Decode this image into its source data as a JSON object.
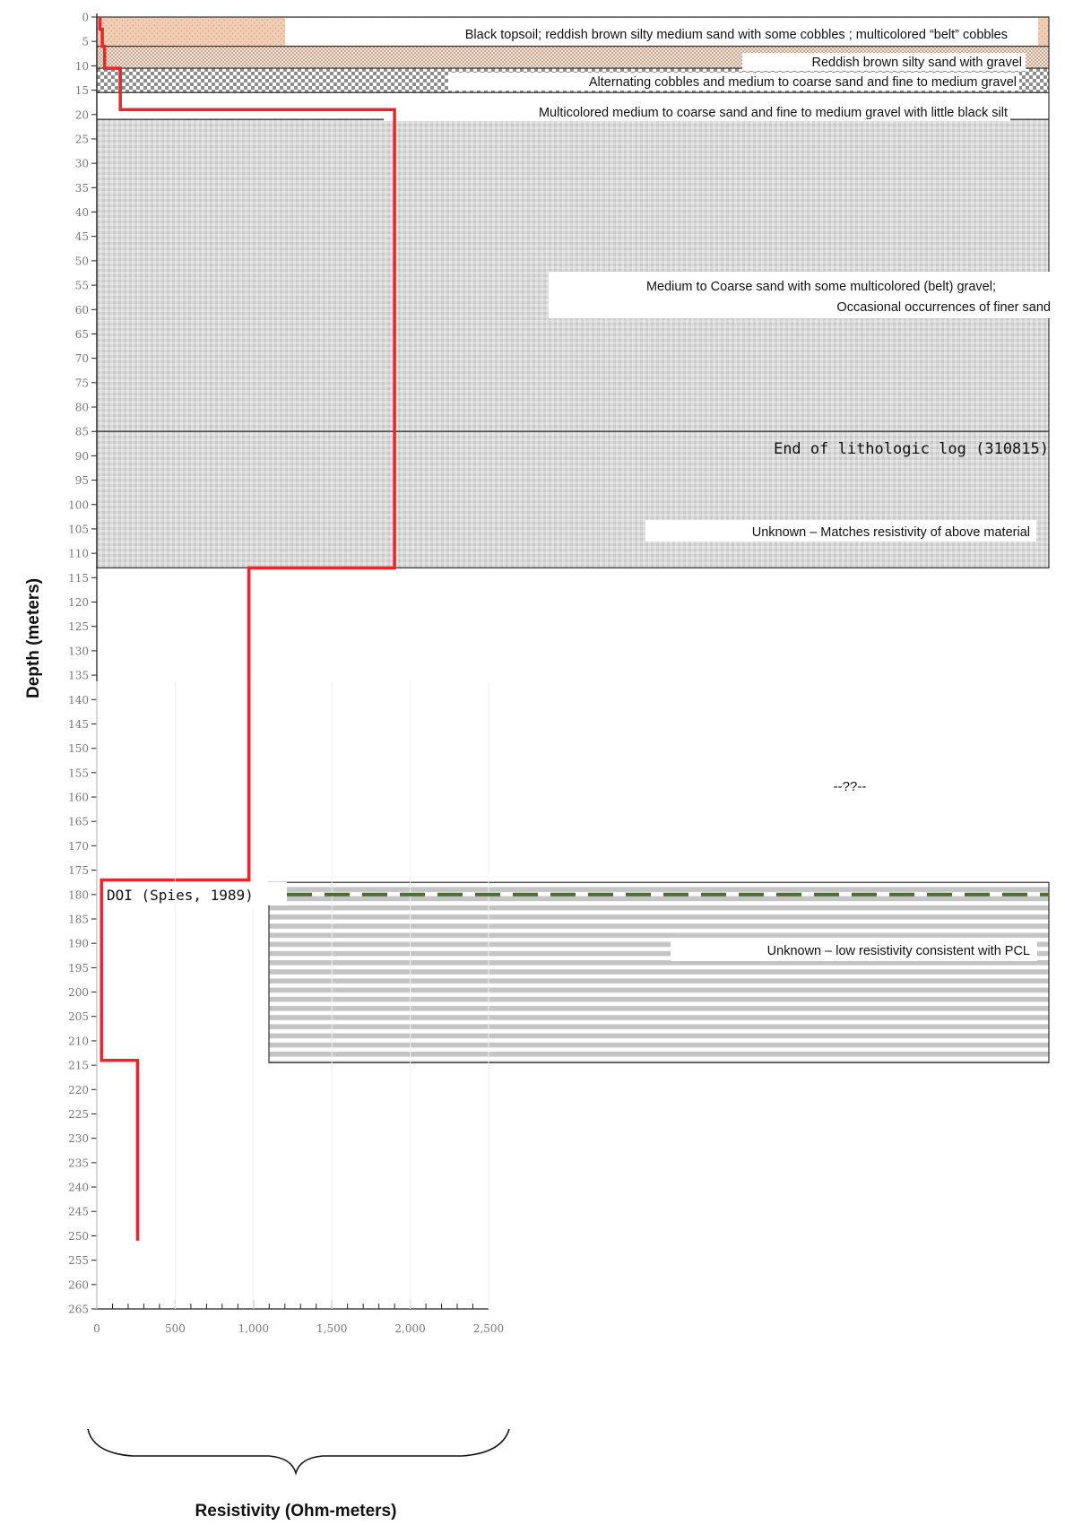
{
  "chart_data": {
    "type": "line",
    "title": "",
    "xlabel": "Resistivity (Ohm-meters)",
    "ylabel": "Depth (meters)",
    "xlim": [
      0,
      2500
    ],
    "ylim": [
      0,
      265
    ],
    "y_inverted": true,
    "x_ticks": [
      0,
      500,
      1000,
      1500,
      2000,
      2500
    ],
    "x_tick_labels": [
      "0",
      "500",
      "1,000",
      "1,500",
      "2,000",
      "2,500"
    ],
    "y_ticks": [
      0,
      5,
      10,
      15,
      20,
      25,
      30,
      35,
      40,
      45,
      50,
      55,
      60,
      65,
      70,
      75,
      80,
      85,
      90,
      95,
      100,
      105,
      110,
      115,
      120,
      125,
      130,
      135,
      140,
      145,
      150,
      155,
      160,
      165,
      170,
      175,
      180,
      185,
      190,
      195,
      200,
      205,
      210,
      215,
      220,
      225,
      230,
      235,
      240,
      245,
      250,
      255,
      260,
      265
    ],
    "series": [
      {
        "color": "#e8262c",
        "points": [
          {
            "x": 20,
            "y": 0
          },
          {
            "x": 20,
            "y": 2.5
          },
          {
            "x": 35,
            "y": 2.5
          },
          {
            "x": 35,
            "y": 6
          },
          {
            "x": 50,
            "y": 6
          },
          {
            "x": 50,
            "y": 10.5
          },
          {
            "x": 150,
            "y": 10.5
          },
          {
            "x": 150,
            "y": 19
          },
          {
            "x": 1900,
            "y": 19
          },
          {
            "x": 1900,
            "y": 113
          },
          {
            "x": 970,
            "y": 113
          },
          {
            "x": 970,
            "y": 177
          },
          {
            "x": 30,
            "y": 177
          },
          {
            "x": 30,
            "y": 214
          },
          {
            "x": 260,
            "y": 214
          },
          {
            "x": 260,
            "y": 251
          }
        ]
      }
    ],
    "layers": [
      {
        "top": 0,
        "bottom": 6,
        "pattern": "topsoil",
        "label": "Black topsoil; reddish brown silty medium sand with some cobbles ; multicolored “belt” cobbles"
      },
      {
        "top": 6,
        "bottom": 10.5,
        "pattern": "silty-sand",
        "label": "Reddish brown silty sand with gravel"
      },
      {
        "top": 10.5,
        "bottom": 15.5,
        "pattern": "cobbles",
        "label": "Alternating cobbles and medium to coarse sand and fine to medium gravel"
      },
      {
        "top": 15.5,
        "bottom": 21,
        "pattern": "none",
        "label": "Multicolored medium to coarse sand and fine to medium gravel with little black silt"
      },
      {
        "top": 21,
        "bottom": 85,
        "pattern": "sand-gravel",
        "label_lines": [
          "Medium to Coarse sand with some multicolored  (belt) gravel;",
          "Occasional occurrences of finer sand"
        ]
      },
      {
        "top": 85,
        "bottom": 113,
        "pattern": "sand-gravel",
        "label": "Unknown – Matches resistivity of above material"
      },
      {
        "top": 177.5,
        "bottom": 214.5,
        "pattern": "stripes",
        "label": "Unknown – low resistivity consistent with PCL"
      }
    ],
    "annotations": {
      "end_log": {
        "depth": 85,
        "text": "End of lithologic log (310815)"
      },
      "doi": {
        "depth": 180,
        "text": "DOI (Spies, 1989)",
        "line_color": "#4e6b30"
      },
      "unknown_zone": {
        "text": "--??--"
      }
    },
    "grid": false,
    "legend": "none"
  }
}
